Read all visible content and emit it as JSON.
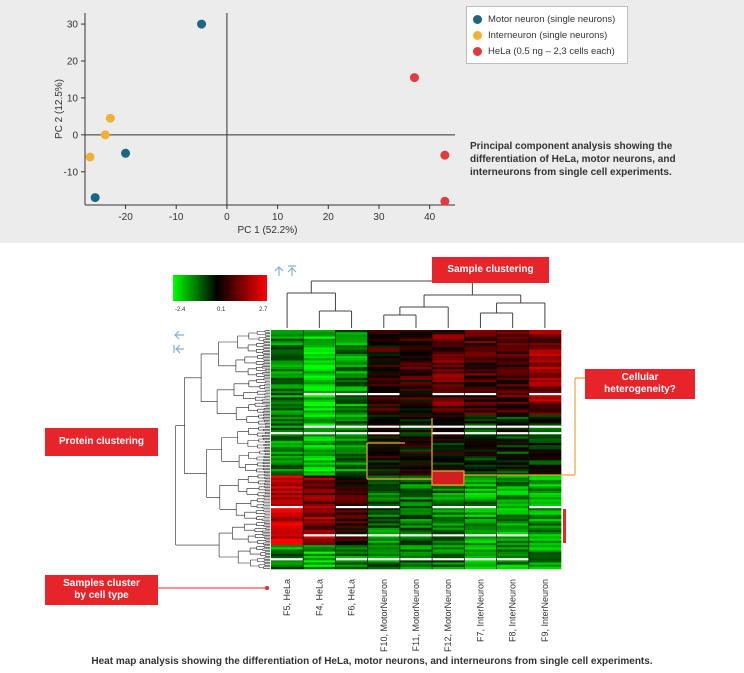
{
  "chart_data": [
    {
      "type": "scatter",
      "title": "",
      "xlabel": "PC 1 (52.2%)",
      "ylabel": "PC 2 (12.5%)",
      "xlim": [
        -28,
        45
      ],
      "ylim": [
        -19,
        33
      ],
      "x_ticks": [
        "-20",
        "-10",
        "0",
        "10",
        "20",
        "30",
        "40"
      ],
      "x_tick_values": [
        -20,
        -10,
        0,
        10,
        20,
        30,
        40
      ],
      "y_ticks": [
        "30",
        "20",
        "10",
        "0",
        "-10"
      ],
      "y_tick_values": [
        30,
        20,
        10,
        0,
        -10
      ],
      "grid": false,
      "legend_position": "top-right",
      "series": [
        {
          "name": "Motor neuron (single neurons)",
          "color": "#1b6680",
          "points": [
            [
              -5,
              30
            ],
            [
              -20,
              -5
            ],
            [
              -26,
              -17
            ]
          ]
        },
        {
          "name": "Interneuron (single neurons)",
          "color": "#f2b134",
          "points": [
            [
              -23,
              4.5
            ],
            [
              -24,
              0
            ],
            [
              -27,
              -6
            ]
          ]
        },
        {
          "name": "HeLa (0.5 ng – 2,3 cells each)",
          "color": "#e03a3a",
          "points": [
            [
              37,
              15.5
            ],
            [
              43,
              -5.5
            ],
            [
              43,
              -18
            ]
          ]
        }
      ],
      "caption": "Principal component analysis showing the differentiation of HeLa, motor neurons, and interneurons from single cell experiments."
    },
    {
      "type": "heatmap",
      "title": "",
      "columns": [
        "F5, HeLa",
        "F4, HeLa",
        "F6, HeLa",
        "F10, MotorNeuron",
        "F11, MotorNeuron",
        "F12, MotorNeuron",
        "F7, InterNeuron",
        "F8, InterNeuron",
        "F9, InterNeuron"
      ],
      "color_scale": {
        "min": -2.4,
        "mid": 0.1,
        "max": 2.7,
        "min_label": "-2.4",
        "mid_label": "0.1",
        "max_label": "2.7",
        "colors": [
          "#00ff00",
          "#000000",
          "#ff0000"
        ]
      },
      "annotations": [
        "Sample clustering",
        "Protein clustering",
        "Cellular heterogeneity?",
        "Samples cluster by cell type"
      ],
      "caption": "Heat map analysis showing the differentiation of HeLa, motor neurons, and interneurons from single cell experiments."
    }
  ],
  "colors": {
    "accent_red": "#e8242b",
    "highlight_orange": "#f2a43a",
    "axis_arrow_blue": "#7fb0d8"
  },
  "icons": {
    "left": "arrow-left-icon",
    "left_bar": "arrow-left-bar-icon",
    "up": "arrow-up-icon",
    "up_bar": "arrow-up-bar-icon"
  }
}
